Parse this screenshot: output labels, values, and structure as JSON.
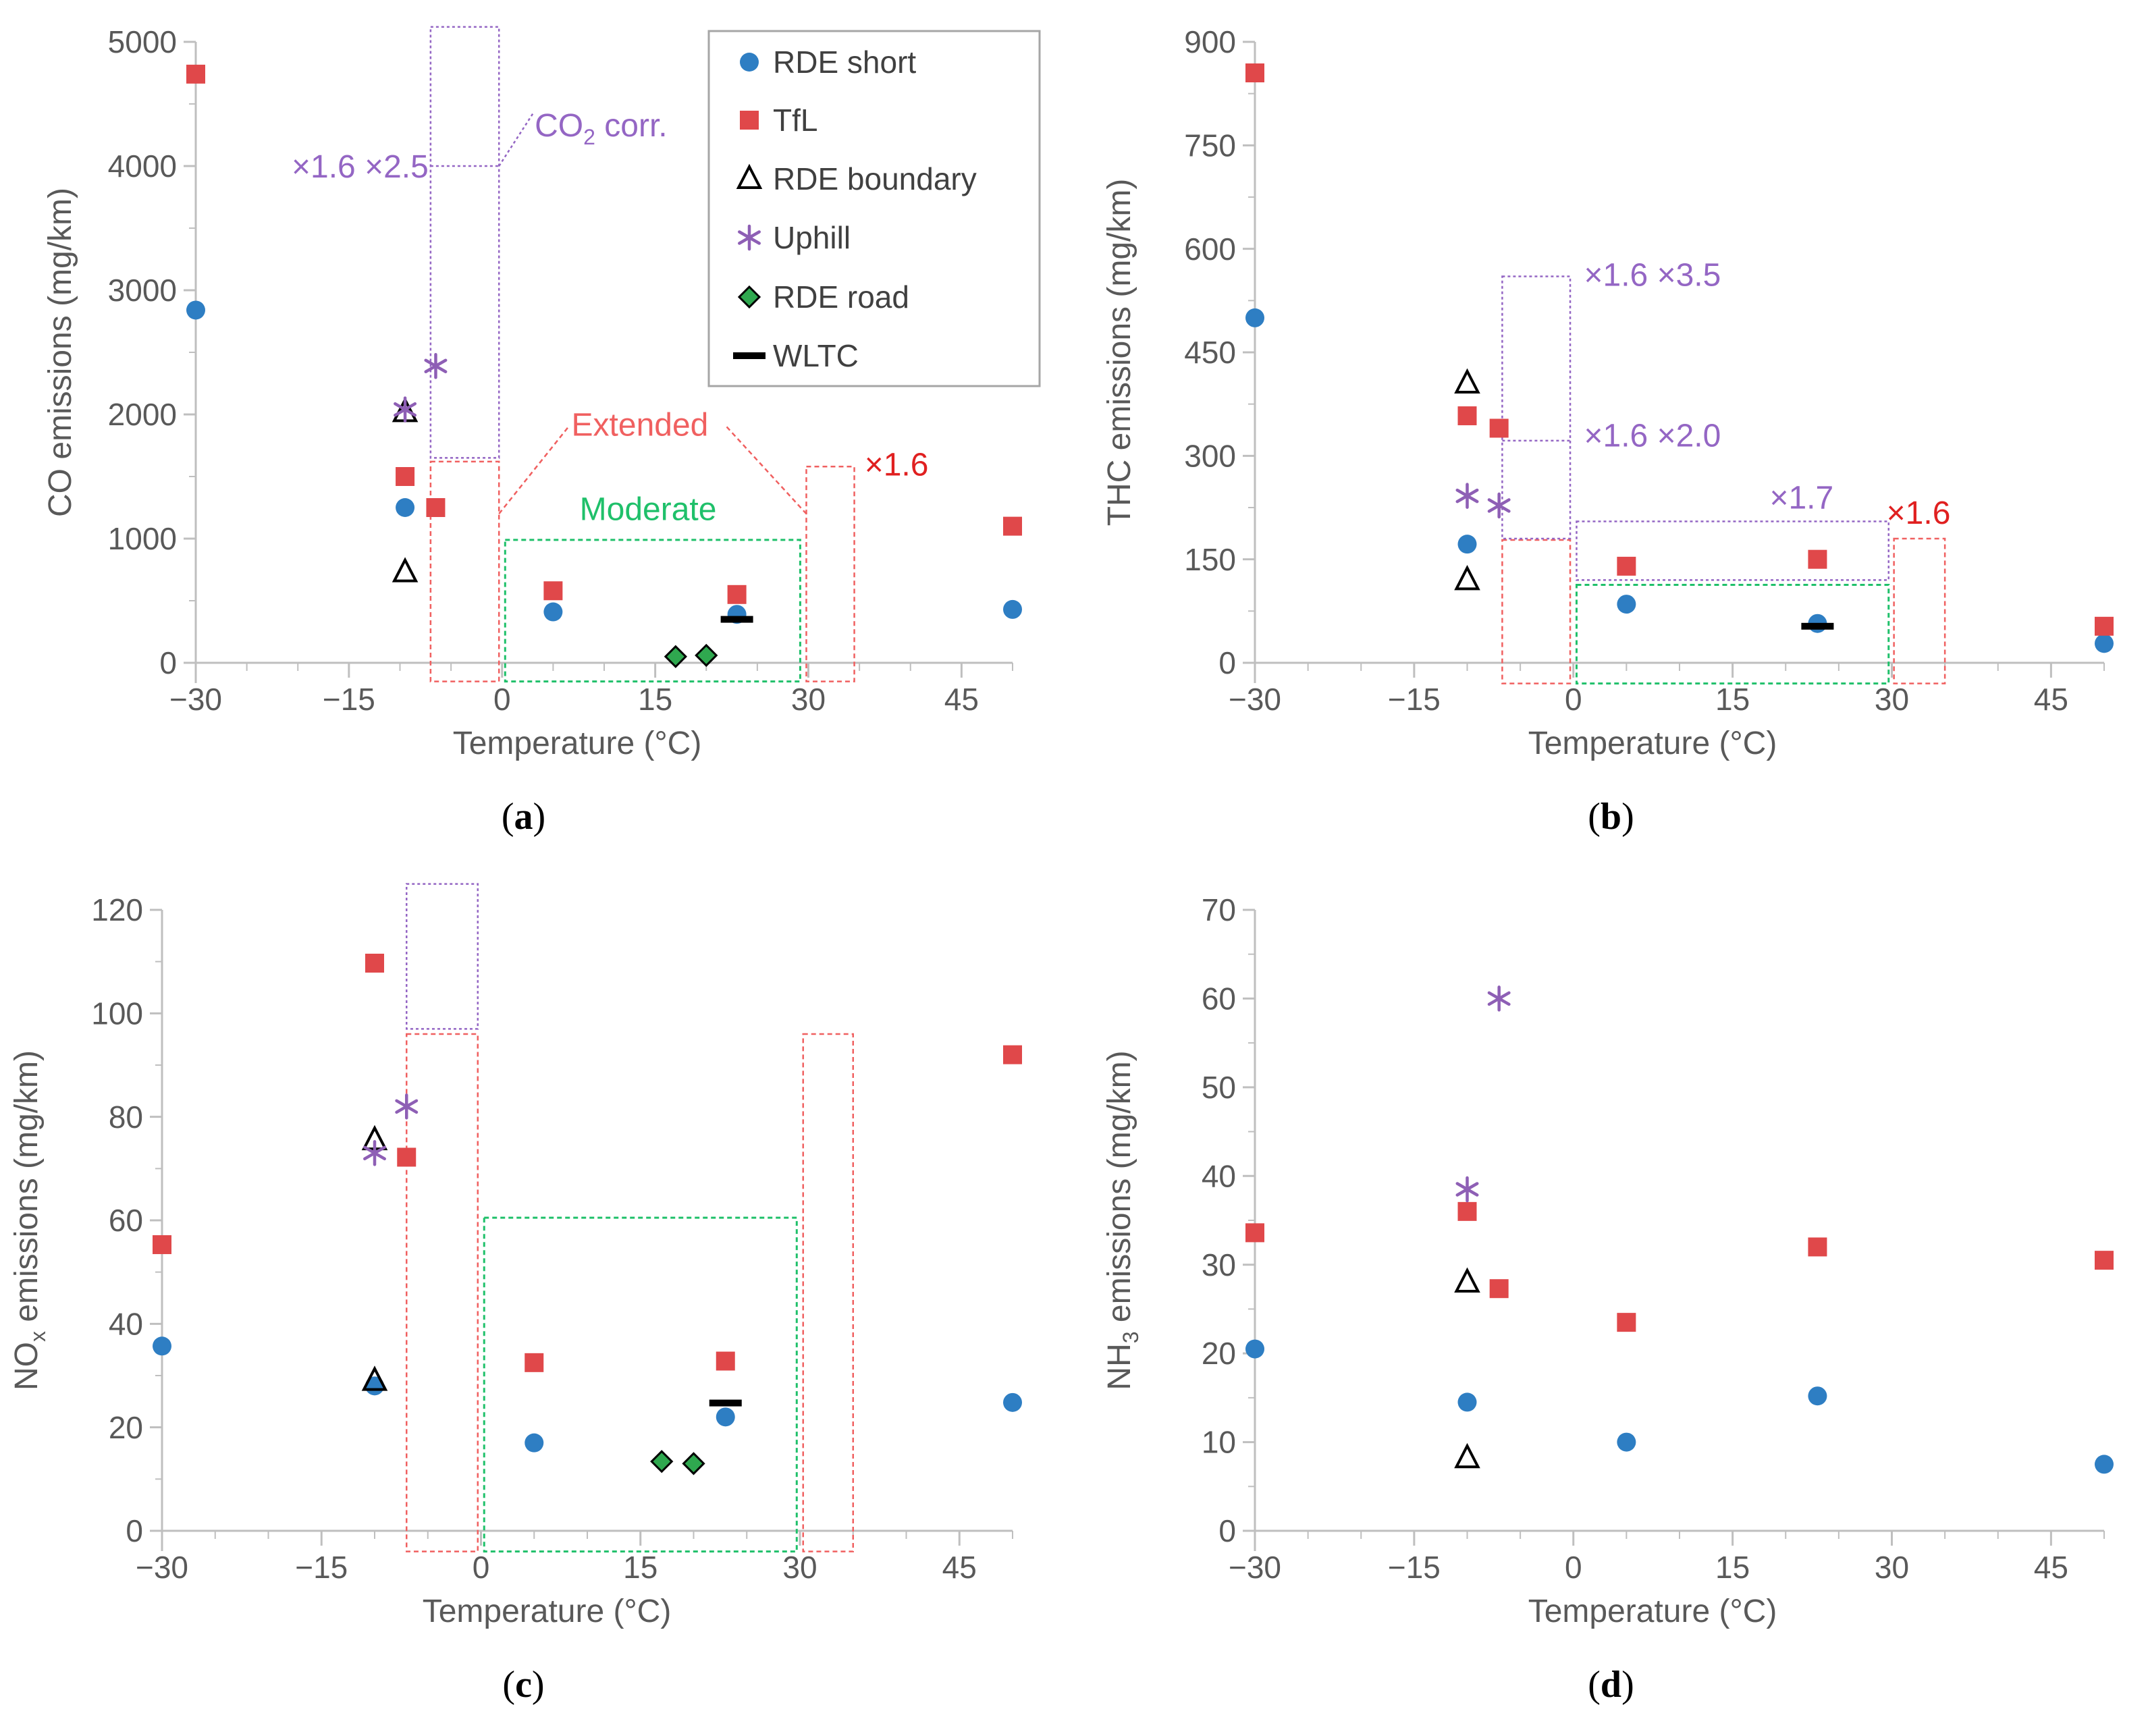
{
  "colors": {
    "rde_short": "#2E7EC3",
    "tfl": "#E0484A",
    "rde_boundary": "#000000",
    "uphill": "#8E5FB5",
    "rde_road": "#2FA84F",
    "wltc": "#000000",
    "extended": "#F06060",
    "moderate": "#1FC06A",
    "corr": "#9466C4",
    "axis": "#BFBFBF",
    "text": "#595959"
  },
  "legend": [
    {
      "key": "rde_short",
      "label": "RDE short",
      "marker": "circle"
    },
    {
      "key": "tfl",
      "label": "TfL",
      "marker": "square"
    },
    {
      "key": "rde_boundary",
      "label": "RDE boundary",
      "marker": "triangle"
    },
    {
      "key": "uphill",
      "label": "Uphill",
      "marker": "star"
    },
    {
      "key": "rde_road",
      "label": "RDE road",
      "marker": "diamond"
    },
    {
      "key": "wltc",
      "label": "WLTC",
      "marker": "dash"
    }
  ],
  "chart_data": [
    {
      "id": "a",
      "caption": "a",
      "type": "scatter",
      "xlabel": "Temperature (°C)",
      "ylabel": "CO emissions (mg/km)",
      "xlim": [
        -30,
        50
      ],
      "ylim": [
        0,
        5000
      ],
      "xticks": [
        -30,
        -15,
        0,
        15,
        30,
        45
      ],
      "xtick_labels": [
        "−30",
        "−15",
        "0",
        "15",
        "30",
        "45"
      ],
      "yticks": [
        0,
        1000,
        2000,
        3000,
        4000,
        5000
      ],
      "series": [
        {
          "key": "rde_short",
          "points": [
            [
              -30,
              2840
            ],
            [
              -9.5,
              1250
            ],
            [
              5,
              410
            ],
            [
              23,
              390
            ],
            [
              50,
              430
            ]
          ]
        },
        {
          "key": "tfl",
          "points": [
            [
              -30,
              4740
            ],
            [
              -9.5,
              1500
            ],
            [
              -6.5,
              1250
            ],
            [
              5,
              580
            ],
            [
              23,
              550
            ],
            [
              50,
              1100
            ]
          ]
        },
        {
          "key": "rde_boundary",
          "points": [
            [
              -9.5,
              2020
            ],
            [
              -9.5,
              730
            ]
          ]
        },
        {
          "key": "uphill",
          "points": [
            [
              -9.5,
              2040
            ],
            [
              -6.5,
              2390
            ]
          ]
        },
        {
          "key": "rde_road",
          "points": [
            [
              17,
              50
            ],
            [
              20,
              60
            ]
          ]
        },
        {
          "key": "wltc",
          "points": [
            [
              23,
              350
            ]
          ]
        }
      ],
      "regions": [
        {
          "style": "extended",
          "x": [
            -7,
            -0.3
          ],
          "y": [
            -150,
            1620
          ]
        },
        {
          "style": "extended",
          "x": [
            29.8,
            34.5
          ],
          "y": [
            -150,
            1580
          ]
        },
        {
          "style": "moderate",
          "x": [
            0.3,
            29.2
          ],
          "y": [
            -150,
            990
          ]
        },
        {
          "style": "corr",
          "x": [
            -7,
            -0.3
          ],
          "y": [
            1650,
            5120
          ]
        }
      ],
      "guides": [
        {
          "style": "corr",
          "points": [
            [
              -7,
              4000
            ],
            [
              -0.3,
              4000
            ]
          ]
        },
        {
          "style": "corr",
          "points": [
            [
              -0.3,
              4000
            ],
            [
              3,
              4420
            ]
          ]
        },
        {
          "style": "extended",
          "points": [
            [
              -0.3,
              1200
            ],
            [
              6.5,
              1900
            ]
          ]
        },
        {
          "style": "extended",
          "points": [
            [
              22,
              1900
            ],
            [
              29.8,
              1200
            ]
          ]
        }
      ],
      "annotations": [
        {
          "text": "×1.6 ×2.5",
          "style": "corr",
          "x": -7.2,
          "y": 4000,
          "anchor": "end"
        },
        {
          "text": "CO",
          "sub": "2",
          "suffix": " corr.",
          "style": "corr",
          "x": 3.2,
          "y": 4330,
          "anchor": "start"
        },
        {
          "text": "Extended",
          "style": "extended",
          "x": 13.5,
          "y": 1920,
          "anchor": "middle"
        },
        {
          "text": "×1.6",
          "style": "tfl_text",
          "x": 35.5,
          "y": 1600,
          "anchor": "start"
        },
        {
          "text": "Moderate",
          "style": "moderate_text",
          "x": 14.3,
          "y": 1240,
          "anchor": "middle"
        }
      ],
      "has_legend": true
    },
    {
      "id": "b",
      "caption": "b",
      "type": "scatter",
      "xlabel": "Temperature (°C)",
      "ylabel": "THC emissions (mg/km)",
      "xlim": [
        -30,
        50
      ],
      "ylim": [
        0,
        900
      ],
      "xticks": [
        -30,
        -15,
        0,
        15,
        30,
        45
      ],
      "xtick_labels": [
        "−30",
        "−15",
        "0",
        "15",
        "30",
        "45"
      ],
      "yticks": [
        0,
        150,
        300,
        450,
        600,
        750,
        900
      ],
      "series": [
        {
          "key": "rde_short",
          "points": [
            [
              -30,
              500
            ],
            [
              -10,
              172
            ],
            [
              5,
              85
            ],
            [
              23,
              57
            ],
            [
              50,
              28
            ]
          ]
        },
        {
          "key": "tfl",
          "points": [
            [
              -30,
              855
            ],
            [
              -10,
              358
            ],
            [
              -7,
              340
            ],
            [
              5,
              140
            ],
            [
              23,
              150
            ],
            [
              50,
              53
            ]
          ]
        },
        {
          "key": "rde_boundary",
          "points": [
            [
              -10,
              405
            ],
            [
              -10,
              120
            ]
          ]
        },
        {
          "key": "uphill",
          "points": [
            [
              -10,
              242
            ],
            [
              -7,
              228
            ]
          ]
        },
        {
          "key": "wltc",
          "points": [
            [
              23,
              53
            ]
          ]
        }
      ],
      "regions": [
        {
          "style": "extended",
          "x": [
            -6.7,
            -0.3
          ],
          "y": [
            -30,
            178
          ]
        },
        {
          "style": "extended",
          "x": [
            30.2,
            35
          ],
          "y": [
            -30,
            180
          ]
        },
        {
          "style": "moderate",
          "x": [
            0.3,
            29.7
          ],
          "y": [
            -30,
            113
          ]
        },
        {
          "style": "corr",
          "x": [
            -6.7,
            -0.3
          ],
          "y": [
            180,
            560
          ]
        },
        {
          "style": "corr",
          "x": [
            0.3,
            29.7
          ],
          "y": [
            120,
            205
          ]
        }
      ],
      "guides": [
        {
          "style": "corr",
          "points": [
            [
              -6.7,
              322
            ],
            [
              -0.3,
              322
            ]
          ]
        }
      ],
      "annotations": [
        {
          "text": "×1.6 ×3.5",
          "style": "corr",
          "x": 1,
          "y": 563,
          "anchor": "start"
        },
        {
          "text": "×1.6 ×2.0",
          "style": "corr",
          "x": 1,
          "y": 330,
          "anchor": "start"
        },
        {
          "text": "×1.7",
          "style": "corr",
          "x": 21.5,
          "y": 240,
          "anchor": "middle"
        },
        {
          "text": "×1.6",
          "style": "tfl_text",
          "x": 29.5,
          "y": 218,
          "anchor": "start"
        }
      ],
      "has_legend": false
    },
    {
      "id": "c",
      "caption": "c",
      "type": "scatter",
      "xlabel": "Temperature (°C)",
      "ylabel": "NO",
      "ylabel_sub": "x",
      "ylabel_suffix": " emissions (mg/km)",
      "xlim": [
        -30,
        50
      ],
      "ylim": [
        0,
        120
      ],
      "xticks": [
        -30,
        -15,
        0,
        15,
        30,
        45
      ],
      "xtick_labels": [
        "−30",
        "−15",
        "0",
        "15",
        "30",
        "45"
      ],
      "yticks": [
        0,
        20,
        40,
        60,
        80,
        100,
        120
      ],
      "xtick_offset": 1,
      "series": [
        {
          "key": "rde_short",
          "points": [
            [
              -30,
              35.7
            ],
            [
              -10,
              28
            ],
            [
              5,
              17
            ],
            [
              23,
              22
            ],
            [
              50,
              24.8
            ]
          ]
        },
        {
          "key": "tfl",
          "points": [
            [
              -30,
              55.3
            ],
            [
              -10,
              109.7
            ],
            [
              -7,
              72.2
            ],
            [
              5,
              32.5
            ],
            [
              23,
              32.8
            ],
            [
              50,
              92
            ]
          ]
        },
        {
          "key": "rde_boundary",
          "points": [
            [
              -10,
              75.5
            ],
            [
              -10,
              29
            ]
          ]
        },
        {
          "key": "uphill",
          "points": [
            [
              -10,
              73
            ],
            [
              -7,
              82
            ]
          ]
        },
        {
          "key": "rde_road",
          "points": [
            [
              17,
              13.4
            ],
            [
              20,
              13
            ]
          ]
        },
        {
          "key": "wltc",
          "points": [
            [
              23,
              24.7
            ]
          ]
        }
      ],
      "regions": [
        {
          "style": "extended",
          "x": [
            -7,
            -0.3
          ],
          "y": [
            -4,
            96
          ]
        },
        {
          "style": "extended",
          "x": [
            30.3,
            35
          ],
          "y": [
            -4,
            96
          ]
        },
        {
          "style": "moderate",
          "x": [
            0.3,
            29.7
          ],
          "y": [
            -4,
            60.5
          ]
        },
        {
          "style": "corr",
          "x": [
            -7,
            -0.3
          ],
          "y": [
            97,
            125
          ]
        }
      ],
      "guides": [],
      "annotations": [],
      "has_legend": false
    },
    {
      "id": "d",
      "caption": "d",
      "type": "scatter",
      "xlabel": "Temperature (°C)",
      "ylabel": "NH",
      "ylabel_sub": "3",
      "ylabel_suffix": " emissions (mg/km)",
      "xlim": [
        -30,
        50
      ],
      "ylim": [
        0,
        70
      ],
      "xticks": [
        -30,
        -15,
        0,
        15,
        30,
        45
      ],
      "xtick_labels": [
        "−30",
        "−15",
        "0",
        "15",
        "30",
        "45"
      ],
      "yticks": [
        0,
        10,
        20,
        30,
        40,
        50,
        60,
        70
      ],
      "series": [
        {
          "key": "rde_short",
          "points": [
            [
              -30,
              20.5
            ],
            [
              -10,
              14.5
            ],
            [
              5,
              10
            ],
            [
              23,
              15.2
            ],
            [
              50,
              7.5
            ]
          ]
        },
        {
          "key": "tfl",
          "points": [
            [
              -30,
              33.6
            ],
            [
              -10,
              36
            ],
            [
              -7,
              27.3
            ],
            [
              5,
              23.5
            ],
            [
              23,
              32
            ],
            [
              50,
              30.5
            ]
          ]
        },
        {
          "key": "rde_boundary",
          "points": [
            [
              -10,
              28
            ],
            [
              -10,
              8.2
            ]
          ]
        },
        {
          "key": "uphill",
          "points": [
            [
              -10,
              38.5
            ],
            [
              -7,
              60
            ]
          ]
        }
      ],
      "regions": [],
      "guides": [],
      "annotations": [],
      "has_legend": false
    }
  ]
}
